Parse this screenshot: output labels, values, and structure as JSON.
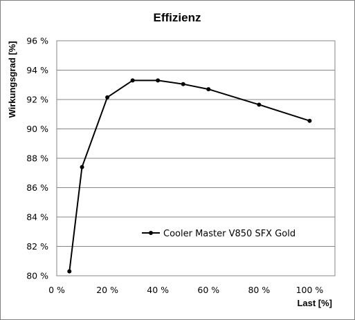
{
  "chart_data": {
    "type": "line",
    "title": "Effizienz",
    "xlabel": "Last [%]",
    "ylabel": "Wirkungsgrad [%]",
    "x": [
      5,
      10,
      20,
      30,
      40,
      50,
      60,
      80,
      100
    ],
    "series": [
      {
        "name": "Cooler Master V850 SFX Gold",
        "values": [
          80.3,
          87.4,
          92.15,
          93.3,
          93.3,
          93.05,
          92.7,
          91.65,
          90.55
        ],
        "color": "#000000"
      }
    ],
    "xlim": [
      0,
      110
    ],
    "ylim": [
      80,
      96
    ],
    "x_ticks": [
      0,
      20,
      40,
      60,
      80,
      100
    ],
    "y_ticks": [
      80,
      82,
      84,
      86,
      88,
      90,
      92,
      94,
      96
    ],
    "x_tick_labels": [
      "0 %",
      "20 %",
      "40 %",
      "60 %",
      "80 %",
      "100 %"
    ],
    "y_tick_labels": [
      "80 %",
      "82 %",
      "84 %",
      "86 %",
      "88 %",
      "90 %",
      "92 %",
      "94 %",
      "96 %"
    ],
    "grid": "horizontal",
    "legend": "lower-right inside plot"
  }
}
